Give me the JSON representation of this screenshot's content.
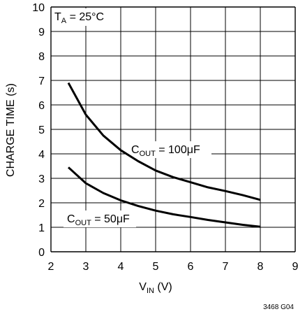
{
  "chart_data": {
    "type": "line",
    "xlabel": {
      "main": "V",
      "sub": "IN",
      "unit": " (V)"
    },
    "ylabel": "CHARGE TIME (s)",
    "xlim": [
      2,
      9
    ],
    "ylim": [
      0,
      10
    ],
    "x_ticks": [
      "2",
      "3",
      "4",
      "5",
      "6",
      "7",
      "8",
      "9"
    ],
    "y_ticks": [
      "0",
      "1",
      "2",
      "3",
      "4",
      "5",
      "6",
      "7",
      "8",
      "9",
      "10"
    ],
    "grid": true,
    "condition_label": {
      "main": "T",
      "sub": "A",
      "rest": " = 25°C"
    },
    "series": [
      {
        "label": {
          "main": "C",
          "sub": "OUT",
          "rest": " = 100μF"
        },
        "x": [
          2.5,
          3,
          3.5,
          4,
          4.5,
          5,
          5.5,
          6,
          6.5,
          7,
          7.5,
          8
        ],
        "y": [
          6.9,
          5.6,
          4.75,
          4.15,
          3.7,
          3.32,
          3.05,
          2.84,
          2.63,
          2.48,
          2.31,
          2.12
        ]
      },
      {
        "label": {
          "main": "C",
          "sub": "OUT",
          "rest": " = 50μF"
        },
        "x": [
          2.5,
          3,
          3.5,
          4,
          4.5,
          5,
          5.5,
          6,
          6.5,
          7,
          7.5,
          8
        ],
        "y": [
          3.45,
          2.8,
          2.4,
          2.1,
          1.87,
          1.68,
          1.53,
          1.42,
          1.3,
          1.2,
          1.1,
          1.02
        ]
      }
    ]
  },
  "figure_code": "3468 G04"
}
